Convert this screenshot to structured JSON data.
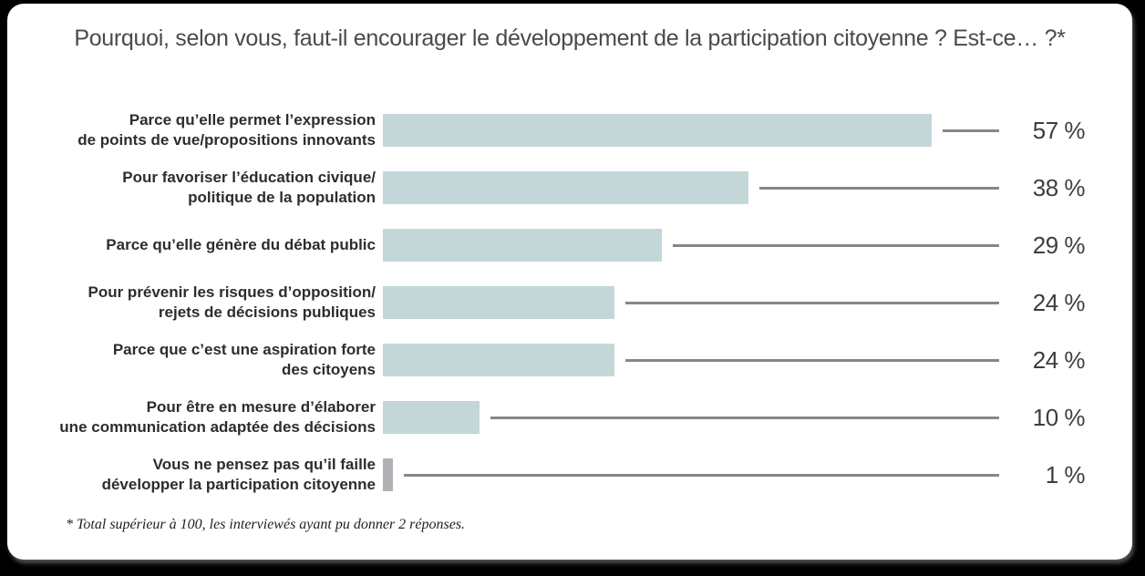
{
  "colors": {
    "background": "#000000",
    "card": "#ffffff",
    "title_text": "#4a4a4a",
    "label_text": "#2d2d2d",
    "value_text": "#3e3e3e",
    "bar_teal": "#c3d7d8",
    "bar_gray": "#b1b1b5",
    "connector_gray": "#878787"
  },
  "chart_data": {
    "type": "bar",
    "orientation": "horizontal",
    "title": "Pourquoi, selon vous, faut-il encourager le développement de la participation citoyenne ? Est-ce… ?*",
    "footnote": "* Total supérieur à 100, les interviewés ayant pu donner 2 réponses.",
    "categories": [
      "Parce qu’elle permet l’expression de points de vue/propositions innovants",
      "Pour favoriser l’éducation civique/ politique de la population",
      "Parce qu’elle génère du débat public",
      "Pour prévenir les risques d’opposition/ rejets de décisions publiques",
      "Parce que c’est une aspiration forte des citoyens",
      "Pour être en mesure d’élaborer une communication adaptée des décisions",
      "Vous ne pensez pas qu’il faille développer la participation citoyenne"
    ],
    "categories_lines": [
      [
        "Parce qu’elle permet l’expression",
        "de points de vue/propositions innovants"
      ],
      [
        "Pour favoriser l’éducation civique/",
        "politique de la population"
      ],
      [
        "Parce qu’elle génère du débat public"
      ],
      [
        "Pour prévenir les risques d’opposition/",
        "rejets de décisions publiques"
      ],
      [
        "Parce que c’est une aspiration forte",
        "des citoyens"
      ],
      [
        "Pour être en mesure d’élaborer",
        "une communication adaptée des décisions"
      ],
      [
        "Vous ne pensez pas qu’il faille",
        "développer la participation citoyenne"
      ]
    ],
    "values": [
      57,
      38,
      29,
      24,
      24,
      10,
      1
    ],
    "value_labels": [
      "57 %",
      "38 %",
      "29 %",
      "24 %",
      "24 %",
      "10 %",
      "1 %"
    ],
    "bar_colors": [
      "#c3d7d8",
      "#c3d7d8",
      "#c3d7d8",
      "#c3d7d8",
      "#c3d7d8",
      "#c3d7d8",
      "#b1b1b5"
    ],
    "xlim": [
      0,
      64
    ],
    "grid": false,
    "legend": null
  }
}
